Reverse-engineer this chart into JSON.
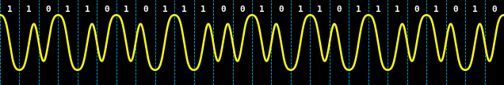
{
  "bits": [
    1,
    1,
    0,
    1,
    1,
    0,
    1,
    0,
    1,
    1,
    1,
    0,
    0,
    1,
    0,
    1,
    1,
    0,
    1,
    1,
    1,
    0,
    1,
    0,
    1,
    0
  ],
  "background_color": "#000000",
  "wave_color": "#ffff00",
  "dashed_line_color": "#00ccff",
  "text_color": "#ffffff",
  "samples_per_bit": 200,
  "amplitude": 1.0,
  "figsize": [
    6.36,
    1.08
  ],
  "dpi": 100,
  "font_size": 8,
  "line_width": 1.8,
  "smoothing": 12
}
